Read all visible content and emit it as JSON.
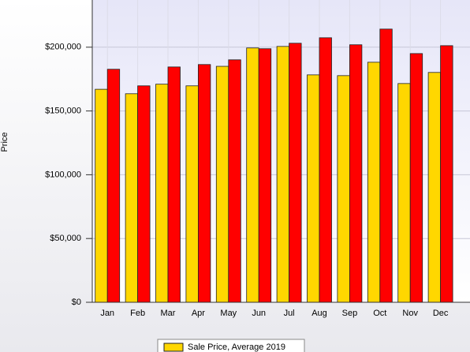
{
  "chart_data": {
    "type": "bar",
    "y_label": "Price",
    "categories": [
      "Jan",
      "Feb",
      "Mar",
      "Apr",
      "May",
      "Jun",
      "Jul",
      "Aug",
      "Sep",
      "Oct",
      "Nov",
      "Dec"
    ],
    "series": [
      {
        "name": "Sale Price, Average 2019",
        "color": "#ffd700",
        "values": [
          167000,
          163500,
          171000,
          169700,
          185000,
          199400,
          200600,
          178300,
          177700,
          188200,
          171500,
          180200
        ]
      },
      {
        "color": "#ff0000",
        "values": [
          182700,
          169700,
          184500,
          186400,
          190100,
          198800,
          203100,
          207400,
          201900,
          214200,
          195000,
          201200
        ]
      }
    ],
    "ylim": [
      0,
      237000
    ],
    "yticks": [
      {
        "value": 0,
        "label": "$0"
      },
      {
        "value": 50000,
        "label": "$50,000"
      },
      {
        "value": 100000,
        "label": "$100,000"
      },
      {
        "value": 150000,
        "label": "$150,000"
      },
      {
        "value": 200000,
        "label": "$200,000"
      }
    ],
    "grid": true
  }
}
